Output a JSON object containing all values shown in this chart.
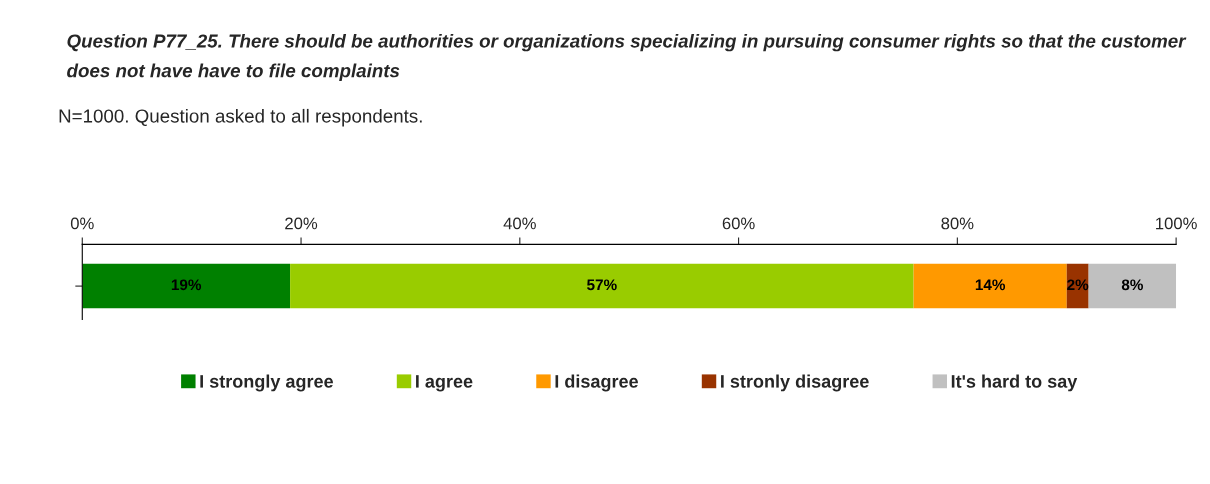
{
  "chart_data": {
    "type": "bar",
    "orientation": "horizontal",
    "stacked": true,
    "title": "Question P77_25. There should be authorities or organizations specializing in pursuing consumer rights so that the customer does not have have to file complaints",
    "subtitle": "N=1000. Question asked to all respondents.",
    "categories": [
      null
    ],
    "series": [
      {
        "name": "I strongly agree",
        "color": "#008000",
        "values": [
          19
        ],
        "value_labels": [
          "19%"
        ]
      },
      {
        "name": "I agree",
        "color": "#99cc00",
        "values": [
          57
        ],
        "value_labels": [
          "57%"
        ]
      },
      {
        "name": "I disagree",
        "color": "#ff9900",
        "values": [
          14
        ],
        "value_labels": [
          "14%"
        ]
      },
      {
        "name": "I stronly disagree",
        "color": "#993300",
        "values": [
          2
        ],
        "value_labels": [
          "2%"
        ]
      },
      {
        "name": "It's hard to say",
        "color": "#c0c0c0",
        "values": [
          8
        ],
        "value_labels": [
          "8%"
        ]
      }
    ],
    "xlim": [
      0,
      100
    ],
    "xticks": [
      {
        "value": 0,
        "label": "0%"
      },
      {
        "value": 20,
        "label": "20%"
      },
      {
        "value": 40,
        "label": "40%"
      },
      {
        "value": 60,
        "label": "60%"
      },
      {
        "value": 80,
        "label": "80%"
      },
      {
        "value": 100,
        "label": "100%"
      }
    ],
    "tick_labels": "x",
    "grid": false,
    "legend": "bottom"
  }
}
